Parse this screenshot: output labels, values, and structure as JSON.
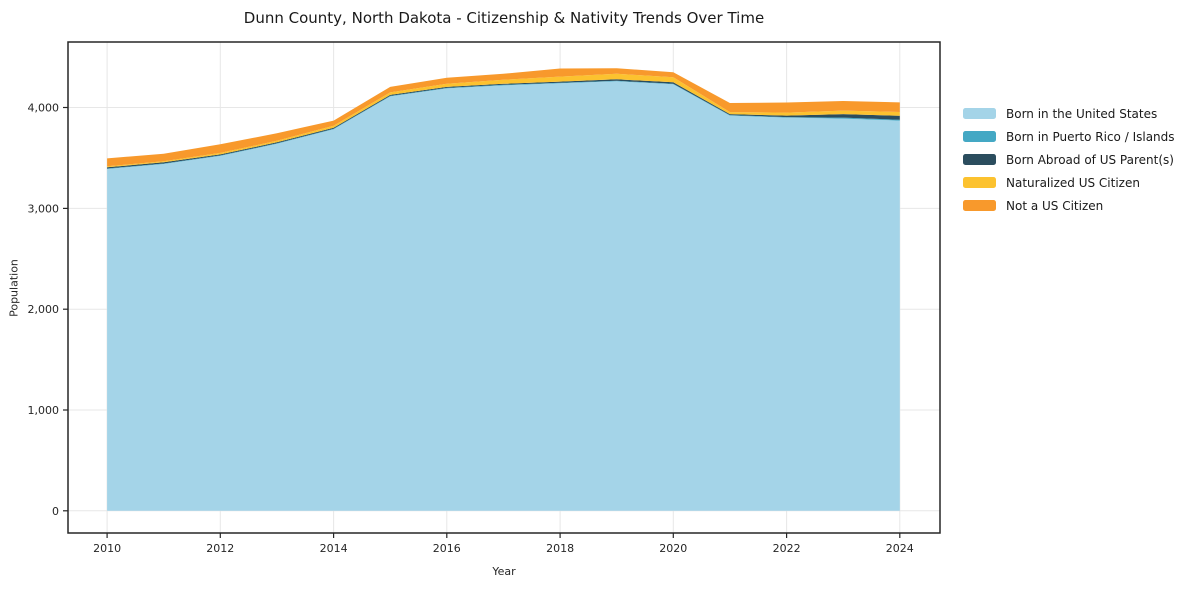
{
  "title": "Dunn County, North Dakota - Citizenship & Nativity Trends Over Time",
  "chart_data": {
    "type": "area",
    "stacked": true,
    "title": "Dunn County, North Dakota - Citizenship & Nativity Trends Over Time",
    "xlabel": "Year",
    "ylabel": "Population",
    "grid": true,
    "legend_position": "right",
    "xlim": [
      2009.31,
      2024.71
    ],
    "ylim": [
      -220,
      4650
    ],
    "x": [
      2010,
      2011,
      2012,
      2013,
      2014,
      2015,
      2016,
      2017,
      2018,
      2019,
      2020,
      2021,
      2022,
      2023,
      2024
    ],
    "xtick_values": [
      2010,
      2012,
      2014,
      2016,
      2018,
      2020,
      2022,
      2024
    ],
    "xtick_labels": [
      "2010",
      "2012",
      "2014",
      "2016",
      "2018",
      "2020",
      "2022",
      "2024"
    ],
    "ytick_values": [
      0,
      1000,
      2000,
      3000,
      4000
    ],
    "ytick_labels": [
      "0",
      "1,000",
      "2,000",
      "3,000",
      "4,000"
    ],
    "series": [
      {
        "name": "Born in the United States",
        "color": "#a4d4e8",
        "values": [
          3390,
          3440,
          3520,
          3640,
          3785,
          4110,
          4190,
          4220,
          4240,
          4260,
          4230,
          3920,
          3900,
          3890,
          3870
        ]
      },
      {
        "name": "Born in Puerto Rico / Islands",
        "color": "#44a8c4",
        "values": [
          5,
          5,
          5,
          5,
          5,
          5,
          5,
          5,
          5,
          5,
          5,
          5,
          5,
          10,
          8
        ]
      },
      {
        "name": "Born Abroad of US Parent(s)",
        "color": "#2b4d5e",
        "values": [
          12,
          12,
          10,
          10,
          10,
          10,
          10,
          10,
          12,
          15,
          15,
          10,
          15,
          35,
          40
        ]
      },
      {
        "name": "Naturalized US Citizen",
        "color": "#fcc22f",
        "values": [
          10,
          10,
          15,
          15,
          20,
          25,
          30,
          40,
          50,
          55,
          50,
          20,
          30,
          35,
          38
        ]
      },
      {
        "name": "Not a US Citizen",
        "color": "#f8992c",
        "values": [
          78,
          75,
          85,
          75,
          50,
          55,
          60,
          60,
          80,
          55,
          50,
          90,
          100,
          95,
          95
        ]
      }
    ]
  },
  "style": {
    "frame_color": "#262626",
    "gridline_color": "#e7e7e7",
    "tick_label_color": "#262626",
    "background": "#ffffff"
  }
}
